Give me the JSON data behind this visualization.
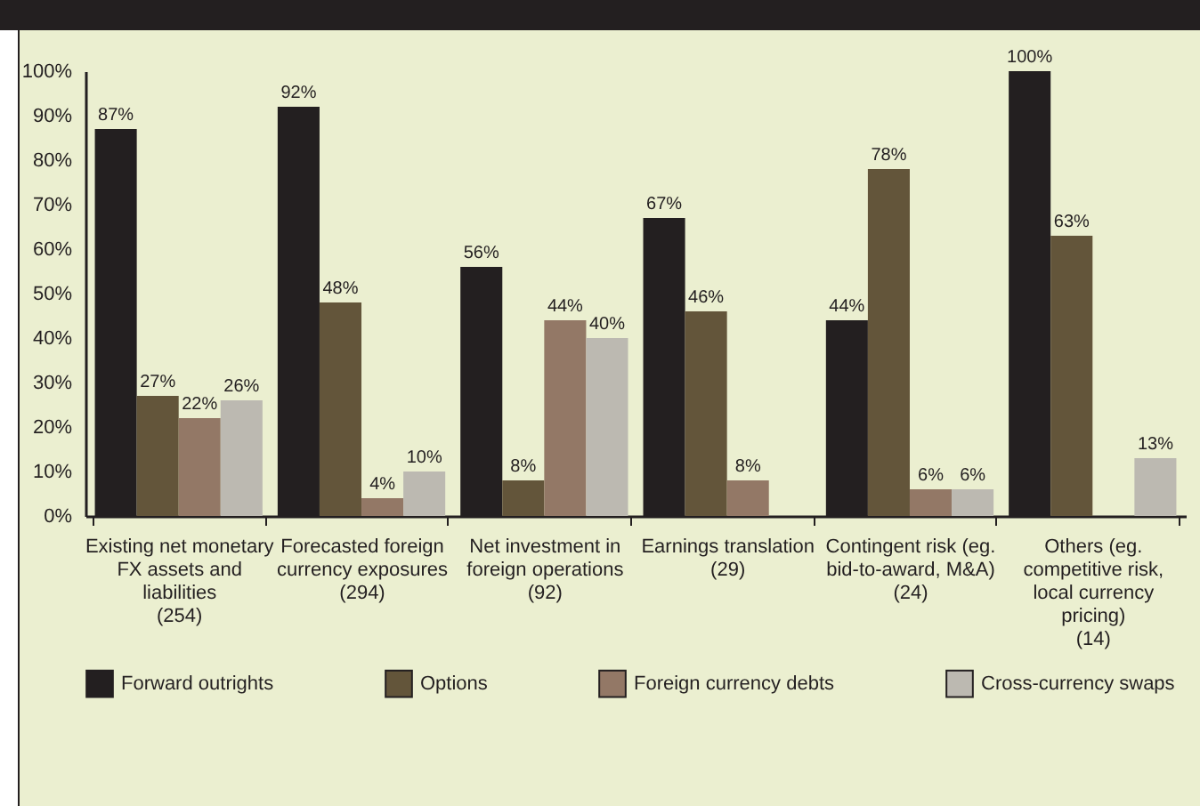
{
  "chart_data": {
    "type": "bar",
    "categories": [
      "Existing net monetary FX assets and liabilities (254)",
      "Forecasted foreign currency exposures (294)",
      "Net investment in foreign operations (92)",
      "Earnings translation (29)",
      "Contingent risk (eg. bid-to-award, M&A) (24)",
      "Others (eg. competitive risk, local currency pricing) (14)"
    ],
    "series": [
      {
        "name": "Forward outrights",
        "color": "#231f20",
        "values": [
          87,
          92,
          56,
          67,
          44,
          100
        ],
        "value_labels": [
          "87%",
          "92%",
          "56%",
          "67%",
          "44%",
          "100%"
        ]
      },
      {
        "name": "Options",
        "color": "#63553a",
        "values": [
          27,
          48,
          8,
          46,
          78,
          63
        ],
        "value_labels": [
          "27%",
          "48%",
          "8%",
          "46%",
          "78%",
          "63%"
        ]
      },
      {
        "name": "Foreign currency debts",
        "color": "#937866",
        "values": [
          22,
          4,
          44,
          8,
          6,
          null
        ],
        "value_labels": [
          "22%",
          "4%",
          "44%",
          "8%",
          "6%",
          null
        ]
      },
      {
        "name": "Cross-currency swaps",
        "color": "#bcb9b1",
        "values": [
          26,
          10,
          40,
          null,
          6,
          13
        ],
        "value_labels": [
          "26%",
          "10%",
          "40%",
          null,
          "6%",
          "13%"
        ]
      }
    ],
    "ylim": [
      0,
      100
    ],
    "yticks": [
      {
        "value": 0,
        "label": "0%"
      },
      {
        "value": 10,
        "label": "10%"
      },
      {
        "value": 20,
        "label": "20%"
      },
      {
        "value": 30,
        "label": "30%"
      },
      {
        "value": 40,
        "label": "40%"
      },
      {
        "value": 50,
        "label": "50%"
      },
      {
        "value": 60,
        "label": "60%"
      },
      {
        "value": 70,
        "label": "70%"
      },
      {
        "value": 80,
        "label": "80%"
      },
      {
        "value": 90,
        "label": "90%"
      },
      {
        "value": 100,
        "label": "100%"
      }
    ],
    "grid": false,
    "legend": "bottom"
  }
}
